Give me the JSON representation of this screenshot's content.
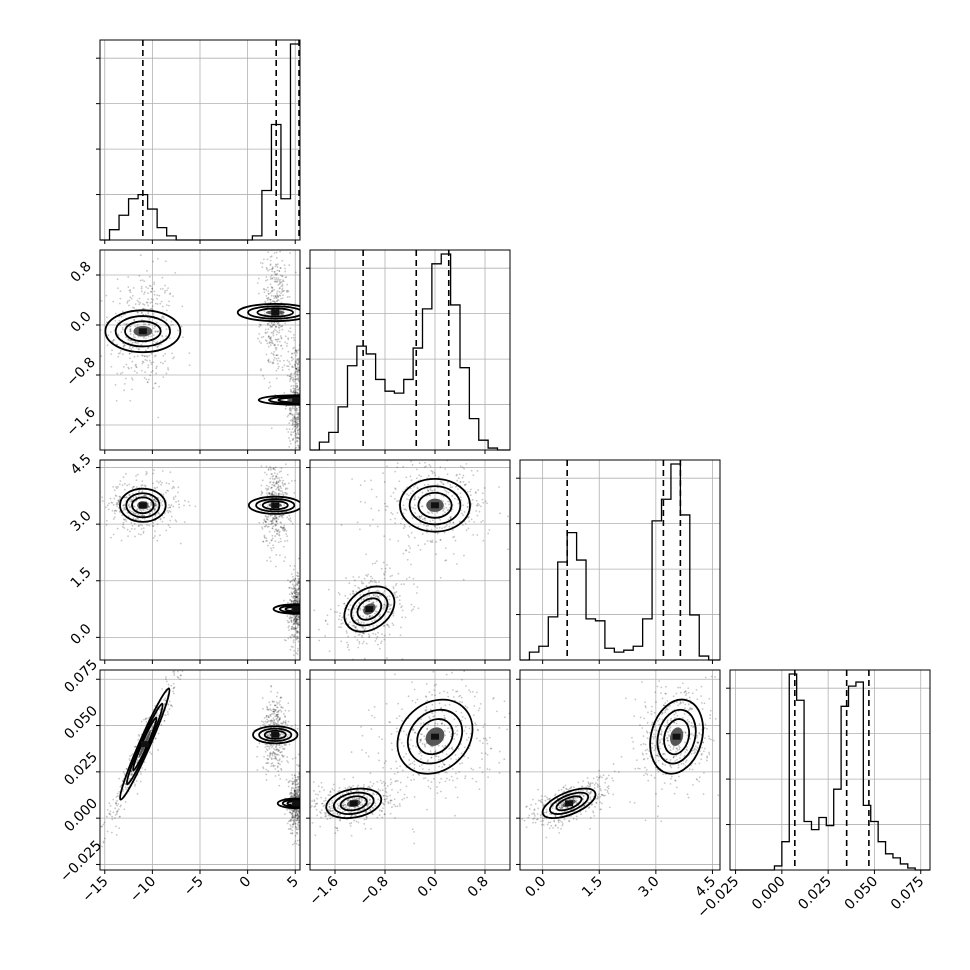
{
  "chart_data": {
    "type": "corner",
    "params": [
      {
        "ylim": null,
        "range": [
          -15.5,
          5.5
        ],
        "ticks": [
          -15,
          -10,
          -5,
          0,
          5
        ],
        "tick_labels": [
          "−15",
          "−10",
          "−5",
          "0",
          "5"
        ],
        "quantiles": [
          -11,
          3,
          5.4
        ]
      },
      {
        "range": [
          -2.0,
          1.2
        ],
        "ticks": [
          -1.6,
          -0.8,
          0.0,
          0.8
        ],
        "tick_labels": [
          "−1.6",
          "−0.8",
          "0.0",
          "0.8"
        ],
        "quantiles": [
          -1.15,
          -0.3,
          0.22
        ]
      },
      {
        "range": [
          -0.6,
          4.7
        ],
        "ticks": [
          0.0,
          1.5,
          3.0,
          4.5
        ],
        "tick_labels": [
          "0.0",
          "1.5",
          "3.0",
          "4.5"
        ],
        "quantiles": [
          0.65,
          3.2,
          3.65
        ]
      },
      {
        "range": [
          -0.028,
          0.08
        ],
        "ticks": [
          -0.025,
          0.0,
          0.025,
          0.05,
          0.075
        ],
        "tick_labels": [
          "−0.025",
          "0.000",
          "0.025",
          "0.050",
          "0.075"
        ],
        "quantiles": [
          0.007,
          0.035,
          0.047
        ]
      }
    ],
    "histograms": [
      {
        "bins": [
          -15.5,
          -14.5,
          -13.5,
          -12.5,
          -11.5,
          -10.5,
          -9.5,
          -8.5,
          -7.5,
          -6.5,
          -5.5,
          -4.5,
          -3.5,
          -2.5,
          -1.5,
          -0.5,
          0.5,
          1.5,
          2.5,
          3.5,
          4.5,
          5.5
        ],
        "counts": [
          0.0,
          0.05,
          0.12,
          0.2,
          0.22,
          0.15,
          0.06,
          0.02,
          0.0,
          0.0,
          0.0,
          0.0,
          0.0,
          0.0,
          0.0,
          0.0,
          0.02,
          0.24,
          0.56,
          0.2,
          0.95
        ]
      },
      {
        "bins": [
          -2.0,
          -1.85,
          -1.7,
          -1.55,
          -1.4,
          -1.25,
          -1.1,
          -0.95,
          -0.8,
          -0.65,
          -0.5,
          -0.35,
          -0.2,
          -0.05,
          0.1,
          0.25,
          0.4,
          0.55,
          0.7,
          0.85,
          1.0,
          1.2
        ],
        "counts": [
          0.0,
          0.04,
          0.09,
          0.22,
          0.43,
          0.53,
          0.49,
          0.36,
          0.3,
          0.29,
          0.36,
          0.52,
          0.72,
          0.95,
          1.0,
          0.74,
          0.42,
          0.16,
          0.05,
          0.01,
          0.0
        ]
      },
      {
        "bins": [
          -0.6,
          -0.35,
          -0.1,
          0.15,
          0.4,
          0.65,
          0.9,
          1.15,
          1.4,
          1.65,
          1.9,
          2.15,
          2.4,
          2.65,
          2.9,
          3.15,
          3.4,
          3.65,
          3.9,
          4.15,
          4.4,
          4.7
        ],
        "counts": [
          0.0,
          0.04,
          0.07,
          0.22,
          0.5,
          0.65,
          0.51,
          0.21,
          0.2,
          0.06,
          0.04,
          0.05,
          0.07,
          0.21,
          0.71,
          0.82,
          1.0,
          0.74,
          0.23,
          0.02,
          0.0
        ]
      },
      {
        "bins": [
          -0.028,
          -0.024,
          -0.02,
          -0.016,
          -0.012,
          -0.008,
          -0.004,
          0.0,
          0.004,
          0.008,
          0.012,
          0.016,
          0.02,
          0.024,
          0.028,
          0.032,
          0.036,
          0.04,
          0.044,
          0.048,
          0.052,
          0.056,
          0.06,
          0.064,
          0.068,
          0.072,
          0.076,
          0.08
        ],
        "counts": [
          0.0,
          0.0,
          0.0,
          0.0,
          0.0,
          0.0,
          0.02,
          0.14,
          0.97,
          0.84,
          0.24,
          0.2,
          0.26,
          0.22,
          0.4,
          0.81,
          0.91,
          0.93,
          0.32,
          0.24,
          0.14,
          0.08,
          0.06,
          0.03,
          0.01,
          0.0,
          0.0
        ]
      }
    ],
    "modes": [
      [
        {
          "x": -11,
          "y": -0.1,
          "sx": 1.1,
          "sy": 0.3,
          "rho": 0
        },
        {
          "x": 2.9,
          "y": 0.2,
          "sx": 0.45,
          "sy": 0.3,
          "rho": 0
        },
        {
          "x": 5.1,
          "y": -1.2,
          "sx": 0.25,
          "sy": 0.3,
          "rho": 0
        }
      ],
      [
        {
          "x": -11,
          "y": 3.5,
          "sx": 1.2,
          "sy": 0.22,
          "rho": 0
        },
        {
          "x": 2.9,
          "y": 3.5,
          "sx": 0.45,
          "sy": 0.35,
          "rho": 0
        },
        {
          "x": 5.1,
          "y": 0.75,
          "sx": 0.25,
          "sy": 0.3,
          "rho": 0
        }
      ],
      [
        {
          "x": -1.05,
          "y": 0.75,
          "sx": 0.2,
          "sy": 0.3,
          "rho": 0.3
        },
        {
          "x": 0.0,
          "y": 3.5,
          "sx": 0.28,
          "sy": 0.35,
          "rho": 0
        }
      ],
      [
        {
          "x": -10.8,
          "y": 0.04,
          "sx": 1.3,
          "sy": 0.015,
          "rho": 0.97
        },
        {
          "x": 2.9,
          "y": 0.045,
          "sx": 0.45,
          "sy": 0.006,
          "rho": 0
        },
        {
          "x": 5.1,
          "y": 0.008,
          "sx": 0.25,
          "sy": 0.005,
          "rho": 0
        }
      ],
      [
        {
          "x": -1.3,
          "y": 0.008,
          "sx": 0.22,
          "sy": 0.004,
          "rho": 0.25
        },
        {
          "x": 0.0,
          "y": 0.044,
          "sx": 0.3,
          "sy": 0.01,
          "rho": 0.2
        }
      ],
      [
        {
          "x": 0.7,
          "y": 0.008,
          "sx": 0.35,
          "sy": 0.004,
          "rho": 0.6
        },
        {
          "x": 3.55,
          "y": 0.044,
          "sx": 0.35,
          "sy": 0.01,
          "rho": 0.2
        }
      ]
    ],
    "grid": true
  }
}
